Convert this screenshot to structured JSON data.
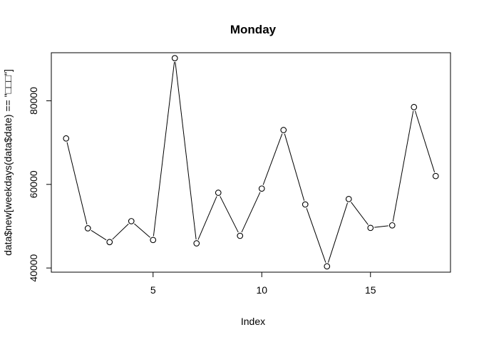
{
  "chart_data": {
    "type": "line",
    "title": "Monday",
    "xlabel": "Index",
    "ylabel": "data$new[weekdays(data$date) == \"□□□\"]",
    "xlim": [
      0.32,
      18.68
    ],
    "ylim": [
      39000,
      91500
    ],
    "x_ticks": [
      5,
      10,
      15
    ],
    "y_ticks": [
      40000,
      60000,
      80000
    ],
    "x": [
      1,
      2,
      3,
      4,
      5,
      6,
      7,
      8,
      9,
      10,
      11,
      12,
      13,
      14,
      15,
      16,
      17,
      18
    ],
    "y": [
      71000,
      49500,
      46200,
      51200,
      46700,
      90200,
      45900,
      58000,
      47700,
      59000,
      73000,
      55200,
      40400,
      56500,
      49600,
      50200,
      78500,
      62000
    ],
    "marker": "open-circle",
    "line": true,
    "grid": false,
    "legend": false,
    "colors": {
      "line": "#000000",
      "marker_stroke": "#000000",
      "marker_fill": "#ffffff"
    }
  }
}
